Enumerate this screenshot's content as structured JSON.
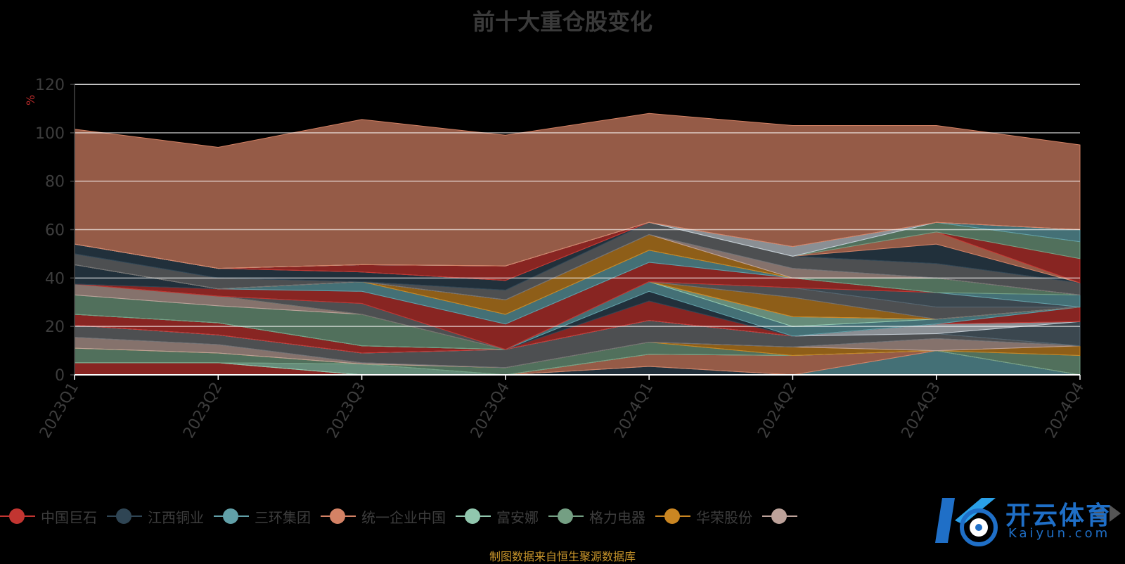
{
  "chart_data": {
    "type": "area",
    "title": "前十大重仓股变化",
    "ylabel": "%",
    "ylim": [
      0,
      120
    ],
    "yticks": [
      "0",
      "20",
      "40",
      "60",
      "80",
      "100",
      "120"
    ],
    "categories": [
      "2023Q1",
      "2023Q2",
      "2023Q3",
      "2023Q4",
      "2024Q1",
      "2024Q2",
      "2024Q3",
      "2024Q4"
    ],
    "stacked": true,
    "grid": true,
    "legend_position": "bottom",
    "series": [
      {
        "name": "中国巨石",
        "color": "#c23531",
        "values": [
          5,
          5,
          0,
          0,
          0,
          0,
          0,
          0
        ]
      },
      {
        "name": "江西铜业",
        "color": "#2f4554",
        "values": [
          0,
          0,
          0,
          0,
          3.5,
          0,
          0,
          0
        ]
      },
      {
        "name": "三环集团",
        "color": "#61a0a8",
        "values": [
          0,
          0,
          0,
          0,
          0,
          0,
          10,
          0
        ]
      },
      {
        "name": "统一企业中国",
        "color": "#d48265",
        "values": [
          0,
          0,
          0,
          0,
          5,
          8,
          0,
          0
        ]
      },
      {
        "name": "富安娜",
        "color": "#91c7ae",
        "values": [
          0,
          0,
          4.5,
          0,
          0,
          0,
          0,
          0
        ]
      },
      {
        "name": "格力电器",
        "color": "#749f83",
        "values": [
          6,
          4,
          0,
          3,
          5,
          0,
          0,
          8
        ]
      },
      {
        "name": "华荣股份",
        "color": "#ca8622",
        "values": [
          0,
          0,
          0,
          0,
          0,
          3.5,
          0,
          4
        ]
      },
      {
        "name": "",
        "color": "#bda29a",
        "values": [
          4.5,
          3.5,
          0.5,
          0,
          0,
          0,
          5,
          0
        ]
      },
      {
        "name": "",
        "color": "#6e7074",
        "values": [
          5,
          4,
          4,
          7.5,
          9,
          4.5,
          2,
          0
        ]
      },
      {
        "name": "",
        "color": "#546570",
        "values": [
          0,
          0,
          0,
          0,
          0,
          0,
          0,
          10
        ]
      },
      {
        "name": "",
        "color": "#c4ccd3",
        "values": [
          0,
          0,
          0,
          0,
          0,
          0,
          4,
          0
        ]
      },
      {
        "name": "",
        "color": "#c23531",
        "values": [
          4.5,
          5,
          3,
          0,
          8,
          0,
          0,
          6
        ]
      },
      {
        "name": "",
        "color": "#2f4554",
        "values": [
          0,
          0,
          0,
          0,
          4,
          0,
          0,
          0
        ]
      },
      {
        "name": "",
        "color": "#61a0a8",
        "values": [
          0,
          0,
          0,
          0,
          4,
          4,
          2,
          0
        ]
      },
      {
        "name": "",
        "color": "#91c7ae",
        "values": [
          0,
          0,
          0,
          0,
          0,
          4,
          0,
          0
        ]
      },
      {
        "name": "",
        "color": "#749f83",
        "values": [
          8,
          7,
          13,
          0,
          0,
          0,
          0,
          0
        ]
      },
      {
        "name": "",
        "color": "#bda29a",
        "values": [
          4.5,
          4,
          0,
          0,
          0,
          0,
          0,
          0
        ]
      },
      {
        "name": "",
        "color": "#ca8622",
        "values": [
          0,
          0,
          0,
          0,
          0,
          8,
          0,
          0
        ]
      },
      {
        "name": "",
        "color": "#6e7074",
        "values": [
          0,
          0,
          4.5,
          0,
          0,
          4,
          5,
          0
        ]
      },
      {
        "name": "",
        "color": "#546570",
        "values": [
          0,
          0,
          0,
          0,
          0,
          0,
          6,
          0
        ]
      },
      {
        "name": "",
        "color": "#c23531",
        "values": [
          0,
          3,
          5,
          10.5,
          8,
          4,
          0,
          0
        ]
      },
      {
        "name": "",
        "color": "#2f4554",
        "values": [
          8,
          0,
          0,
          0,
          0,
          0,
          0,
          0
        ]
      },
      {
        "name": "",
        "color": "#61a0a8",
        "values": [
          0,
          0,
          4,
          4,
          5,
          0,
          0,
          5
        ]
      },
      {
        "name": "",
        "color": "#749f83",
        "values": [
          0,
          0,
          0,
          0,
          0,
          0,
          6,
          0
        ]
      },
      {
        "name": "",
        "color": "#ca8622",
        "values": [
          0,
          0,
          0,
          6,
          6.5,
          0,
          0,
          0
        ]
      },
      {
        "name": "",
        "color": "#bda29a",
        "values": [
          0,
          0,
          0,
          0,
          0,
          4,
          0,
          0
        ]
      },
      {
        "name": "",
        "color": "#6e7074",
        "values": [
          4.5,
          4.5,
          0,
          4,
          5,
          5,
          6,
          5
        ]
      },
      {
        "name": "",
        "color": "#2f4554",
        "values": [
          4,
          4,
          4,
          4,
          0,
          0,
          8,
          0
        ]
      },
      {
        "name": "",
        "color": "#d48265",
        "values": [
          0,
          0,
          0,
          0,
          0,
          0,
          5,
          0
        ]
      },
      {
        "name": "",
        "color": "#c23531",
        "values": [
          0,
          0,
          3,
          6,
          0,
          0,
          0,
          10
        ]
      },
      {
        "name": "",
        "color": "#749f83",
        "values": [
          0,
          0,
          0,
          0,
          0,
          0,
          4,
          7
        ]
      },
      {
        "name": "",
        "color": "#61a0a8",
        "values": [
          0,
          0,
          0,
          0,
          0,
          0,
          0,
          5
        ]
      },
      {
        "name": "",
        "color": "#c4ccd3",
        "values": [
          0,
          0,
          0,
          0,
          0,
          4,
          0,
          0
        ]
      },
      {
        "name": "",
        "color": "#d48265",
        "values": [
          47.5,
          50,
          60,
          54,
          45,
          50,
          40,
          35
        ]
      }
    ]
  },
  "legend": {
    "items": [
      {
        "label": "中国巨石",
        "color": "#c23531"
      },
      {
        "label": "江西铜业",
        "color": "#2f4554"
      },
      {
        "label": "三环集团",
        "color": "#61a0a8"
      },
      {
        "label": "统一企业中国",
        "color": "#d48265"
      },
      {
        "label": "富安娜",
        "color": "#91c7ae"
      },
      {
        "label": "格力电器",
        "color": "#749f83"
      },
      {
        "label": "华荣股份",
        "color": "#ca8622"
      },
      {
        "label": "",
        "color": "#bda29a"
      }
    ]
  },
  "source_note": "制图数据来自恒生聚源数据库",
  "watermark": {
    "title": "开云体育",
    "subtitle": "Kaiyun.com"
  }
}
